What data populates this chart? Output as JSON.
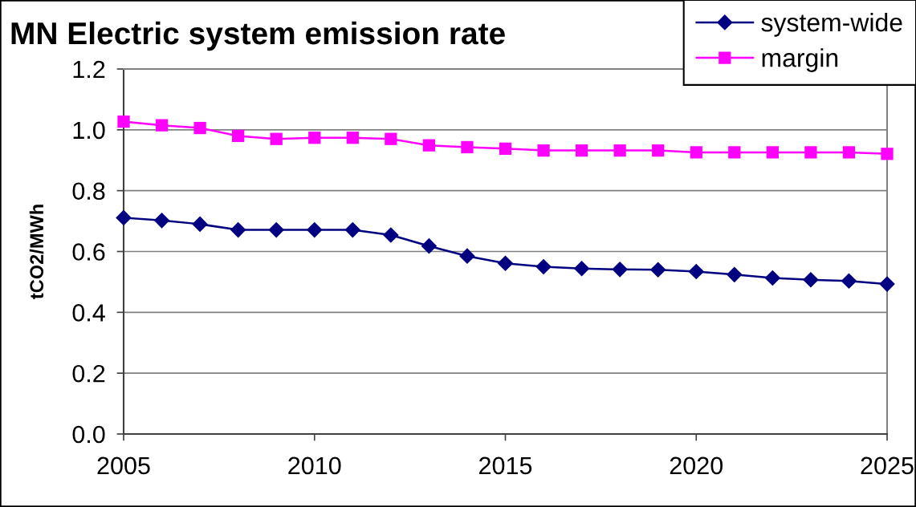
{
  "chart_data": {
    "type": "line",
    "title": "MN Electric system emission rate",
    "ylabel": "tCO2/MWh",
    "x": [
      2005,
      2006,
      2007,
      2008,
      2009,
      2010,
      2011,
      2012,
      2013,
      2014,
      2015,
      2016,
      2017,
      2018,
      2019,
      2020,
      2021,
      2022,
      2023,
      2024,
      2025
    ],
    "series": [
      {
        "name": "system-wide",
        "color": "#000080",
        "marker": "diamond",
        "values": [
          0.711,
          0.702,
          0.69,
          0.671,
          0.671,
          0.671,
          0.671,
          0.654,
          0.618,
          0.585,
          0.561,
          0.55,
          0.544,
          0.541,
          0.54,
          0.534,
          0.524,
          0.513,
          0.507,
          0.503,
          0.493
        ]
      },
      {
        "name": "margin",
        "color": "#ff00ff",
        "marker": "square",
        "values": [
          1.027,
          1.015,
          1.006,
          0.98,
          0.97,
          0.974,
          0.974,
          0.97,
          0.949,
          0.943,
          0.938,
          0.932,
          0.932,
          0.932,
          0.932,
          0.926,
          0.926,
          0.926,
          0.926,
          0.926,
          0.921
        ]
      }
    ],
    "xlim": [
      2005,
      2025
    ],
    "xticks": [
      2005,
      2010,
      2015,
      2020,
      2025
    ],
    "ylim": [
      0,
      1.2
    ],
    "yticks": [
      {
        "value": 0,
        "label": "0.0"
      },
      {
        "value": 0.2,
        "label": "0.2"
      },
      {
        "value": 0.4,
        "label": "0.4"
      },
      {
        "value": 0.6,
        "label": "0.6"
      },
      {
        "value": 0.8,
        "label": "0.8"
      },
      {
        "value": 1.0,
        "label": "1.0"
      },
      {
        "value": 1.2,
        "label": "1.2"
      }
    ],
    "grid": "y",
    "legend": "top right",
    "line_style": "solid"
  }
}
